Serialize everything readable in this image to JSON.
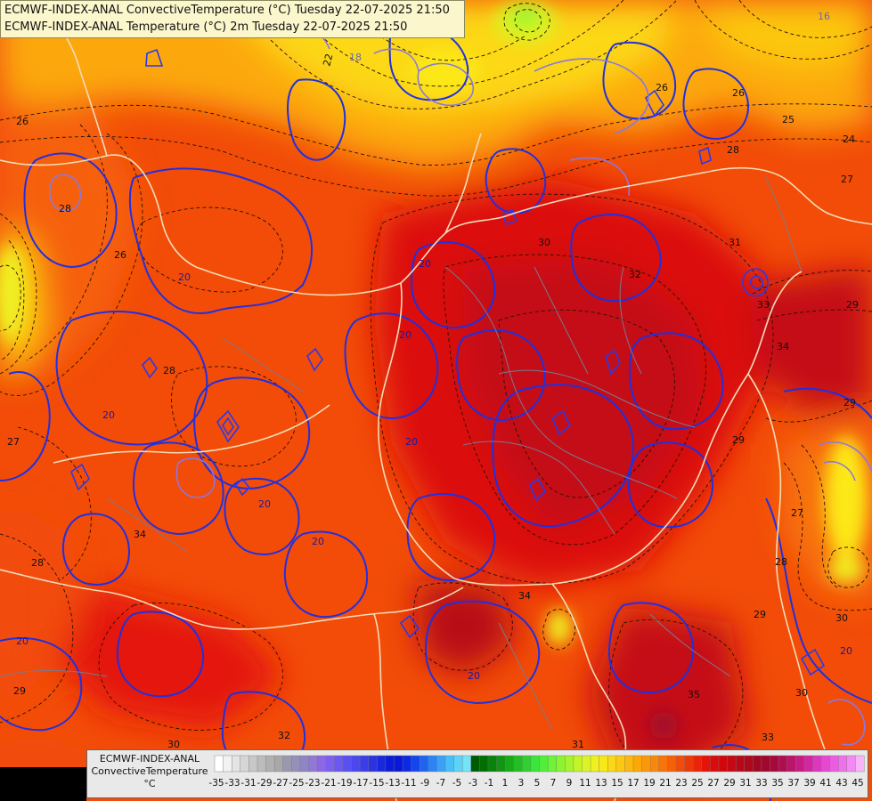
{
  "header": {
    "line1": "ECMWF-INDEX-ANAL ConvectiveTemperature (°C) Tuesday 22-07-2025 21:50",
    "line2": "ECMWF-INDEX-ANAL Temperature (°C) 2m Tuesday 22-07-2025 21:50"
  },
  "contour_labels": [
    {
      "text": "22"
    },
    {
      "text": "18"
    },
    {
      "text": "16"
    },
    {
      "text": "26"
    },
    {
      "text": "26"
    },
    {
      "text": "25"
    },
    {
      "text": "24"
    },
    {
      "text": "27"
    },
    {
      "text": "26"
    },
    {
      "text": "28"
    },
    {
      "text": "26"
    },
    {
      "text": "20"
    },
    {
      "text": "28"
    },
    {
      "text": "20"
    },
    {
      "text": "30"
    },
    {
      "text": "31"
    },
    {
      "text": "32"
    },
    {
      "text": "33"
    },
    {
      "text": "29"
    },
    {
      "text": "34"
    },
    {
      "text": "34"
    },
    {
      "text": "20"
    },
    {
      "text": "20"
    },
    {
      "text": "28"
    },
    {
      "text": "20"
    },
    {
      "text": "20"
    },
    {
      "text": "20"
    },
    {
      "text": "29"
    },
    {
      "text": "27"
    },
    {
      "text": "28"
    },
    {
      "text": "29"
    },
    {
      "text": "30"
    },
    {
      "text": "30"
    },
    {
      "text": "28"
    },
    {
      "text": "27"
    },
    {
      "text": "34"
    },
    {
      "text": "20"
    },
    {
      "text": "35"
    },
    {
      "text": "33"
    },
    {
      "text": "32"
    },
    {
      "text": "29"
    },
    {
      "text": "31"
    },
    {
      "text": "20"
    },
    {
      "text": "30"
    },
    {
      "text": "20"
    },
    {
      "text": "29"
    }
  ],
  "legend": {
    "line1": "ECMWF-INDEX-ANAL",
    "line2": "ConvectiveTemperature",
    "line3": "°C",
    "tick_labels": [
      "-35",
      "-33",
      "-31",
      "-29",
      "-27",
      "-25",
      "-23",
      "-21",
      "-19",
      "-17",
      "-15",
      "-13",
      "-11",
      "-9",
      "-7",
      "-5",
      "-3",
      "-1",
      "1",
      "3",
      "5",
      "7",
      "9",
      "11",
      "13",
      "15",
      "17",
      "19",
      "21",
      "23",
      "25",
      "27",
      "29",
      "31",
      "33",
      "35",
      "37",
      "39",
      "41",
      "43",
      "45"
    ],
    "colors": [
      "#ffffff",
      "#f2f2f2",
      "#e4e4e4",
      "#d6d6d6",
      "#c8c8c8",
      "#bcbcbc",
      "#b0b0b0",
      "#a8a8a8",
      "#9898b0",
      "#9490b8",
      "#8f84c6",
      "#9277d4",
      "#8c68e2",
      "#7c5ff0",
      "#6a57f4",
      "#5a50f2",
      "#4a48ee",
      "#3a3ee8",
      "#2c34e2",
      "#1a28dc",
      "#0c1cd6",
      "#0818dc",
      "#0c2ae6",
      "#1446ee",
      "#1e64f4",
      "#2a84f6",
      "#38a2f8",
      "#48bef8",
      "#5ad4f8",
      "#74e4f8",
      "#005a00",
      "#006e00",
      "#088208",
      "#109610",
      "#18aa18",
      "#22be22",
      "#2ed22e",
      "#3ae63a",
      "#50f03a",
      "#6cf436",
      "#8cf430",
      "#a8f42c",
      "#c4f428",
      "#dcf424",
      "#f0f020",
      "#f8e818",
      "#fcd814",
      "#fcc810",
      "#fcb80c",
      "#fca808",
      "#fc9808",
      "#fa8808",
      "#f87408",
      "#f66008",
      "#f24c08",
      "#ee3808",
      "#ea2408",
      "#e41408",
      "#dc0a0a",
      "#d0080e",
      "#c40814",
      "#b80818",
      "#ac081e",
      "#a00824",
      "#a0082e",
      "#a8083c",
      "#b00c50",
      "#bc1468",
      "#c81c84",
      "#d426a0",
      "#de36bc",
      "#e648d2",
      "#ec5ce2",
      "#f070ec",
      "#f28af4",
      "#f8b4f8"
    ]
  }
}
